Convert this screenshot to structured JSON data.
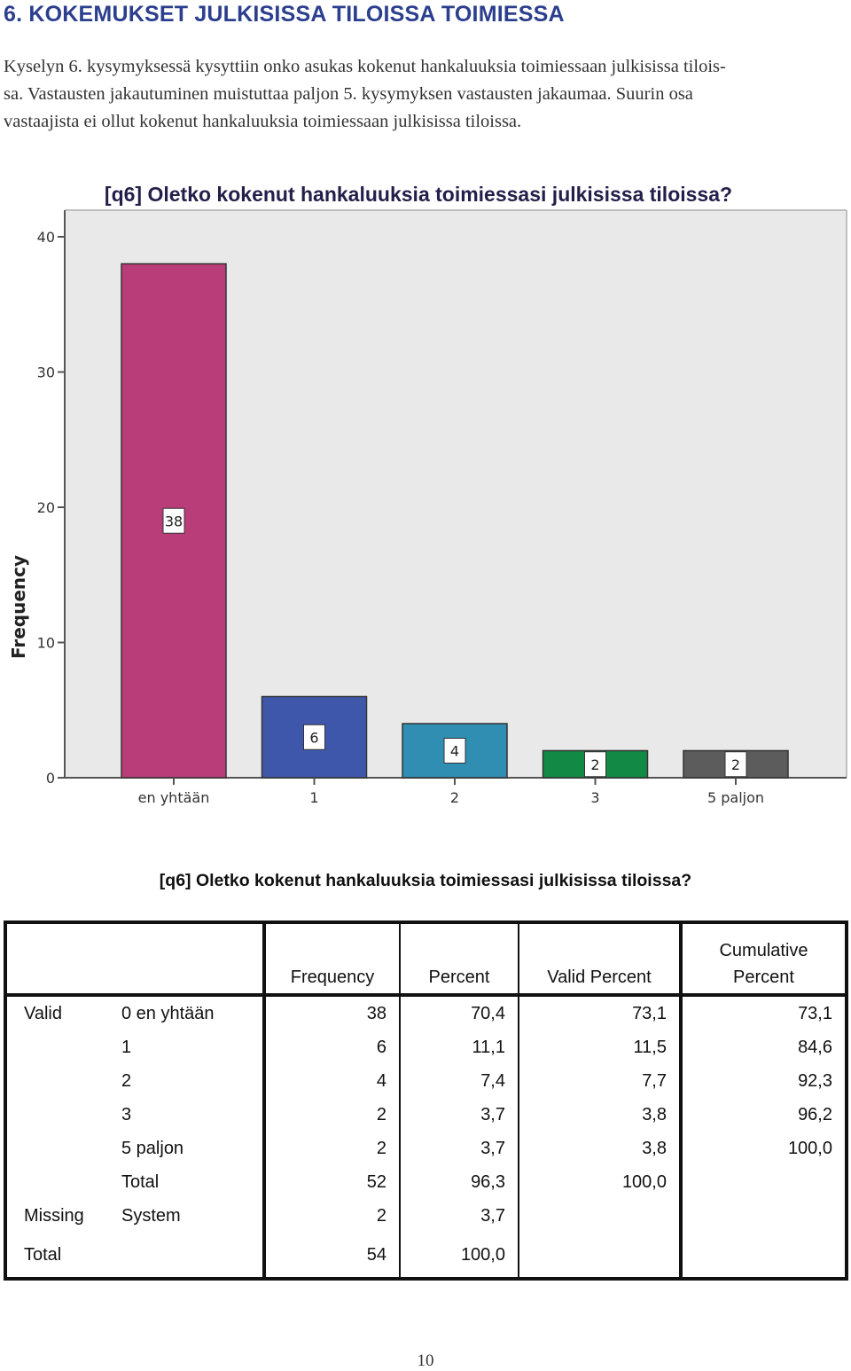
{
  "heading": "6. KOKEMUKSET JULKISISSA TILOISSA TOIMIESSA",
  "intro_lines": [
    "Kyselyn 6. kysymyksessä kysyttiin onko asukas kokenut hankaluuksia toimiessaan julkisissa tilois-",
    "sa. Vastausten jakautuminen muistuttaa paljon 5. kysymyksen vastausten jakaumaa. Suurin osa",
    "vastaajista ei ollut kokenut hankaluuksia toimiessaan julkisissa tiloissa."
  ],
  "chart_data": {
    "type": "bar",
    "title": "[q6] Oletko kokenut hankaluuksia toimiessasi julkisissa tiloissa?",
    "xlabel": "",
    "ylabel": "Frequency",
    "categories": [
      "en yhtään",
      "1",
      "2",
      "3",
      "5 paljon"
    ],
    "values": [
      38,
      6,
      4,
      2,
      2
    ],
    "data_labels": [
      "38",
      "6",
      "4",
      "2",
      "2"
    ],
    "ylim": [
      0,
      42
    ],
    "yticks": [
      0,
      10,
      20,
      30,
      40
    ],
    "ytick_labels": [
      "0",
      "10",
      "20",
      "30",
      "40"
    ],
    "bar_colors": [
      "#b93d78",
      "#3f57ab",
      "#2f8eb1",
      "#128a46",
      "#5c5c5c"
    ],
    "plot_background": "#e9e9e9",
    "grid": false
  },
  "table": {
    "title": "[q6] Oletko kokenut hankaluuksia toimiessasi julkisissa tiloissa?",
    "headers": {
      "frequency": "Frequency",
      "percent": "Percent",
      "valid_percent": "Valid Percent",
      "cumulative_line1": "Cumulative",
      "cumulative_line2": "Percent"
    },
    "rows": [
      {
        "group": "Valid",
        "label": "0 en yhtään",
        "frequency": "38",
        "percent": "70,4",
        "valid_percent": "73,1",
        "cumulative": "73,1"
      },
      {
        "group": "",
        "label": "1",
        "frequency": "6",
        "percent": "11,1",
        "valid_percent": "11,5",
        "cumulative": "84,6"
      },
      {
        "group": "",
        "label": "2",
        "frequency": "4",
        "percent": "7,4",
        "valid_percent": "7,7",
        "cumulative": "92,3"
      },
      {
        "group": "",
        "label": "3",
        "frequency": "2",
        "percent": "3,7",
        "valid_percent": "3,8",
        "cumulative": "96,2"
      },
      {
        "group": "",
        "label": "5 paljon",
        "frequency": "2",
        "percent": "3,7",
        "valid_percent": "3,8",
        "cumulative": "100,0"
      },
      {
        "group": "",
        "label": "Total",
        "frequency": "52",
        "percent": "96,3",
        "valid_percent": "100,0",
        "cumulative": ""
      },
      {
        "group": "Missing",
        "label": "System",
        "frequency": "2",
        "percent": "3,7",
        "valid_percent": "",
        "cumulative": ""
      },
      {
        "group": "Total",
        "label": "",
        "frequency": "54",
        "percent": "100,0",
        "valid_percent": "",
        "cumulative": ""
      }
    ]
  },
  "page_number": "10"
}
